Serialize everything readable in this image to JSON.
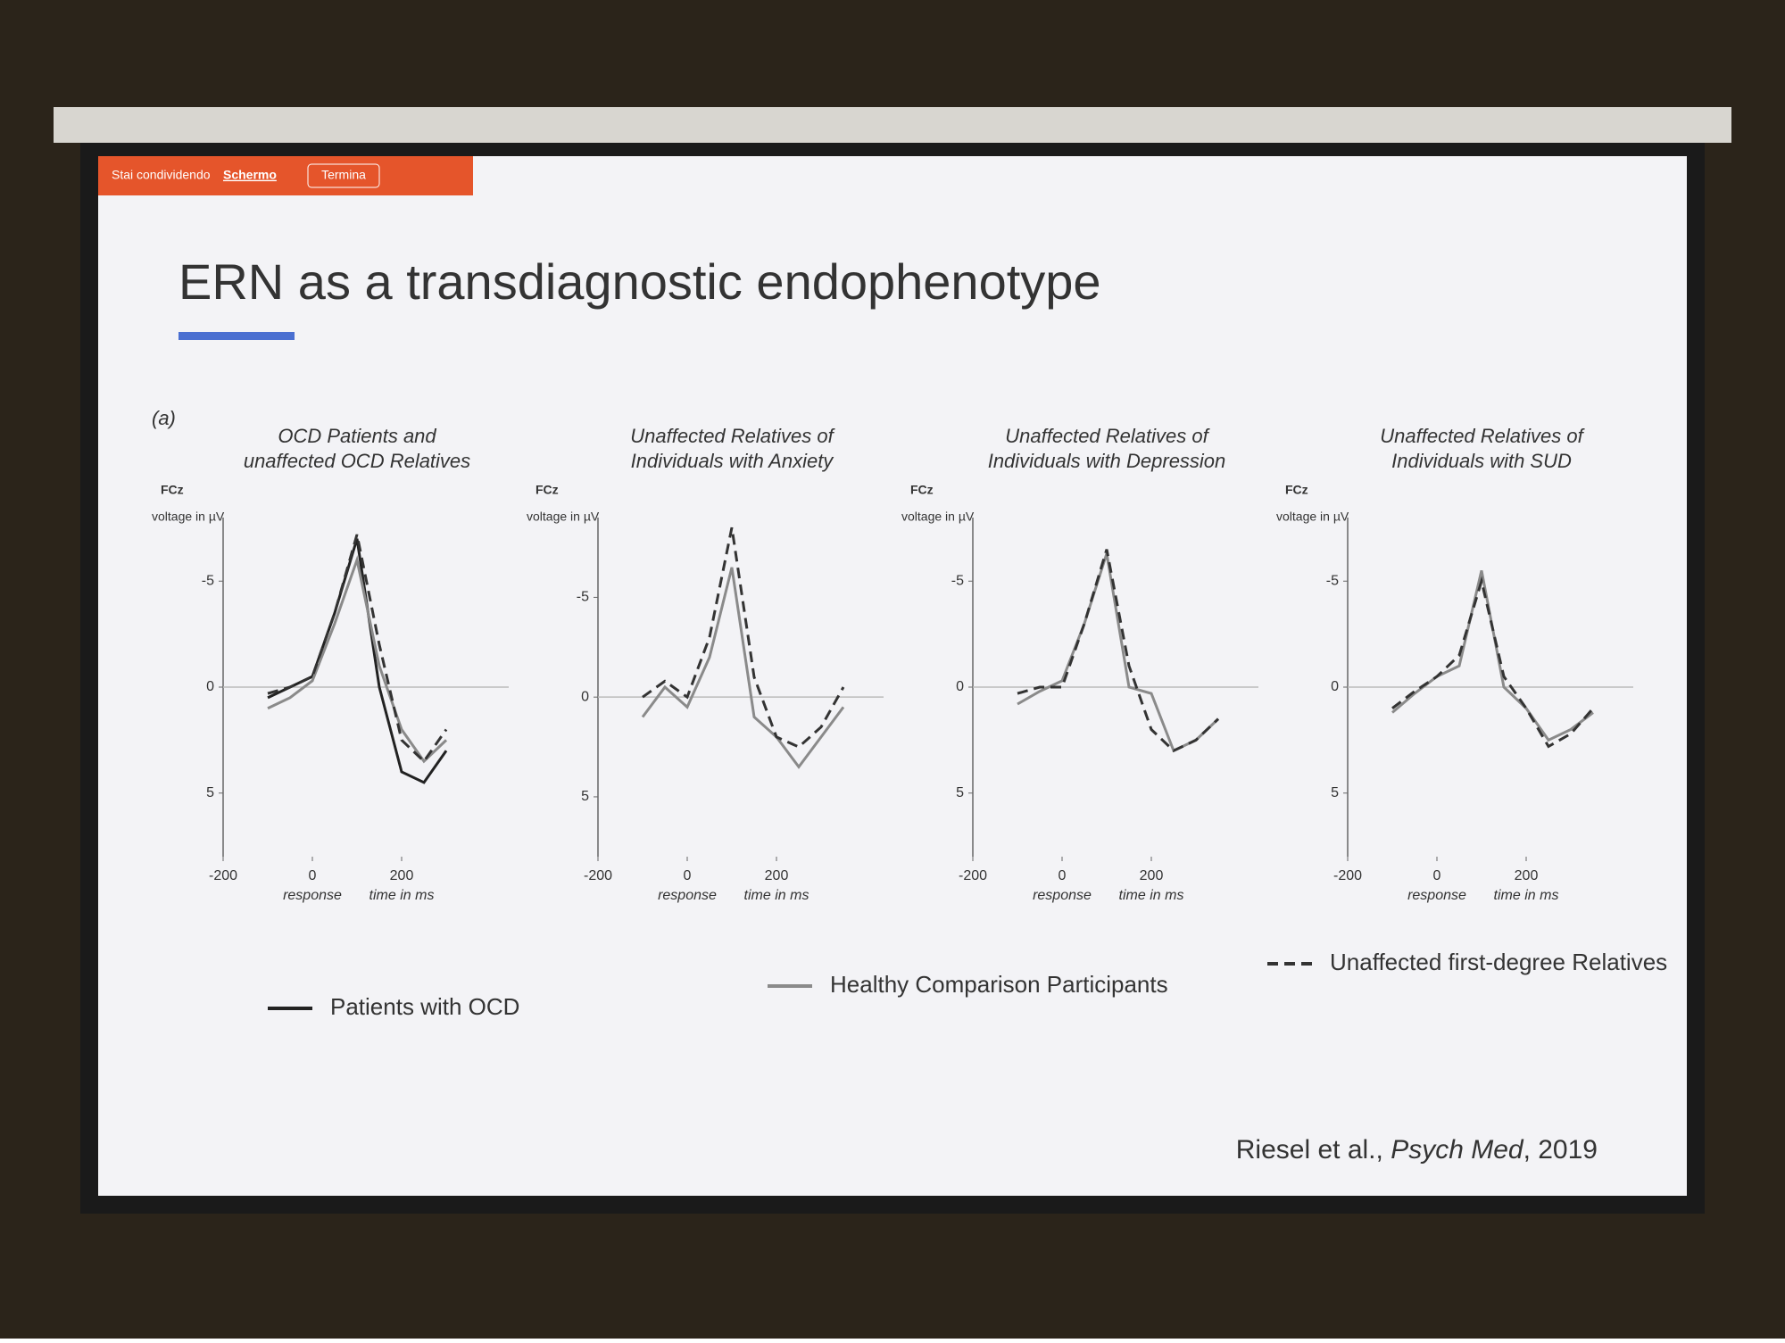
{
  "share_bar": {
    "status": "Stai condividendo",
    "mode": "Schermo",
    "stop": "Termina"
  },
  "slide": {
    "title": "ERN as a transdiagnostic endophenotype",
    "panel_tag": "(a)",
    "citation": {
      "authors": "Riesel et al.,",
      "journal": "Psych Med",
      "year": ", 2019"
    }
  },
  "legend": [
    {
      "name": "Patients with OCD",
      "color": "#222222",
      "style": "solid"
    },
    {
      "name": "Healthy Comparison Participants",
      "color": "#8a8a8a",
      "style": "solid"
    },
    {
      "name": "Unaffected first-degree Relatives",
      "color": "#333333",
      "style": "dashed"
    }
  ],
  "chart_data": [
    {
      "type": "line",
      "title": [
        "OCD Patients and",
        "unaffected OCD Relatives"
      ],
      "channel": "FCz",
      "ylabel": "voltage in µV",
      "xlabel": "time in ms",
      "zero_label": "response",
      "x": [
        -100,
        -50,
        0,
        50,
        100,
        150,
        200,
        250,
        300
      ],
      "xlim": [
        -200,
        400
      ],
      "xticks": [
        -200,
        0,
        200
      ],
      "ylim": [
        8,
        -8
      ],
      "yticks": [
        -5,
        0,
        5
      ],
      "series": [
        {
          "color": "#222222",
          "style": "solid",
          "values": [
            0.5,
            0,
            -0.5,
            -3.5,
            -7,
            0,
            4,
            4.5,
            3
          ]
        },
        {
          "color": "#8a8a8a",
          "style": "solid",
          "values": [
            1,
            0.5,
            -0.3,
            -3,
            -6,
            -1,
            2,
            3.5,
            2.5
          ]
        },
        {
          "color": "#333333",
          "style": "dashed",
          "values": [
            0.3,
            0,
            -0.5,
            -3.5,
            -7.2,
            -2,
            2.5,
            3.5,
            2
          ]
        }
      ]
    },
    {
      "type": "line",
      "title": [
        "Unaffected Relatives of",
        "Individuals with Anxiety"
      ],
      "channel": "FCz",
      "ylabel": "voltage in µV",
      "xlabel": "time in ms",
      "zero_label": "response",
      "x": [
        -100,
        -50,
        0,
        50,
        100,
        150,
        200,
        250,
        300,
        350
      ],
      "xlim": [
        -200,
        400
      ],
      "xticks": [
        -200,
        0,
        200
      ],
      "ylim": [
        8,
        -9
      ],
      "yticks": [
        -5,
        0,
        5
      ],
      "series": [
        {
          "color": "#8a8a8a",
          "style": "solid",
          "values": [
            1,
            -0.5,
            0.5,
            -2,
            -6.5,
            1,
            2,
            3.5,
            2,
            0.5
          ]
        },
        {
          "color": "#333333",
          "style": "dashed",
          "values": [
            0,
            -0.8,
            0,
            -3,
            -8.5,
            -1,
            2,
            2.5,
            1.5,
            -0.5
          ]
        }
      ]
    },
    {
      "type": "line",
      "title": [
        "Unaffected Relatives of",
        "Individuals with Depression"
      ],
      "channel": "FCz",
      "ylabel": "voltage in µV",
      "xlabel": "time in ms",
      "zero_label": "response",
      "x": [
        -100,
        -50,
        0,
        50,
        100,
        150,
        200,
        250,
        300,
        350
      ],
      "xlim": [
        -200,
        400
      ],
      "xticks": [
        -200,
        0,
        200
      ],
      "ylim": [
        8,
        -8
      ],
      "yticks": [
        -5,
        0,
        5
      ],
      "series": [
        {
          "color": "#8a8a8a",
          "style": "solid",
          "values": [
            0.8,
            0.2,
            -0.3,
            -3,
            -6.3,
            0,
            0.3,
            3,
            2.5,
            1.5
          ]
        },
        {
          "color": "#333333",
          "style": "dashed",
          "values": [
            0.3,
            0,
            0,
            -3,
            -6.5,
            -1,
            2,
            3,
            2.5,
            1.5
          ]
        }
      ]
    },
    {
      "type": "line",
      "title": [
        "Unaffected Relatives of",
        "Individuals with SUD"
      ],
      "channel": "FCz",
      "ylabel": "voltage in µV",
      "xlabel": "time in ms",
      "zero_label": "response",
      "x": [
        -100,
        -50,
        0,
        50,
        100,
        150,
        200,
        250,
        300,
        350
      ],
      "xlim": [
        -200,
        400
      ],
      "xticks": [
        -200,
        0,
        200
      ],
      "ylim": [
        8,
        -8
      ],
      "yticks": [
        -5,
        0,
        5
      ],
      "series": [
        {
          "color": "#8a8a8a",
          "style": "solid",
          "values": [
            1.2,
            0.3,
            -0.5,
            -1,
            -5.5,
            0,
            1,
            2.5,
            2,
            1.2
          ]
        },
        {
          "color": "#333333",
          "style": "dashed",
          "values": [
            1,
            0.2,
            -0.5,
            -1.5,
            -5,
            -0.5,
            1,
            2.8,
            2.2,
            1
          ]
        }
      ]
    }
  ]
}
